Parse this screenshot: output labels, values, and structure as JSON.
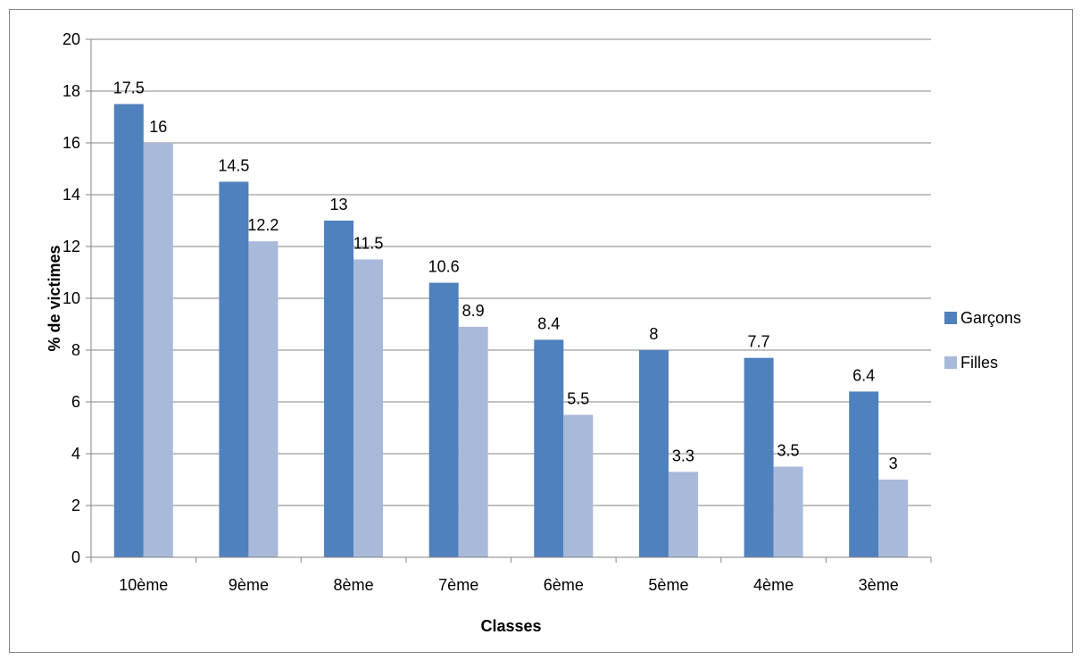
{
  "chart_data": {
    "type": "bar",
    "categories": [
      "10ème",
      "9ème",
      "8ème",
      "7ème",
      "6ème",
      "5ème",
      "4ème",
      "3ème"
    ],
    "series": [
      {
        "name": "Garçons",
        "values": [
          17.5,
          14.5,
          13,
          10.6,
          8.4,
          8,
          7.7,
          6.4
        ],
        "color": "#4F81BD"
      },
      {
        "name": "Filles",
        "values": [
          16,
          12.2,
          11.5,
          8.9,
          5.5,
          3.3,
          3.5,
          3
        ],
        "color": "#A9B9DA"
      }
    ],
    "xlabel": "Classes",
    "ylabel": "% de victimes",
    "ylim": [
      0,
      20
    ],
    "yticks": [
      0,
      2,
      4,
      6,
      8,
      10,
      12,
      14,
      16,
      18,
      20
    ],
    "grid": true,
    "legend_position": "right",
    "gridline_color": "#868686"
  }
}
